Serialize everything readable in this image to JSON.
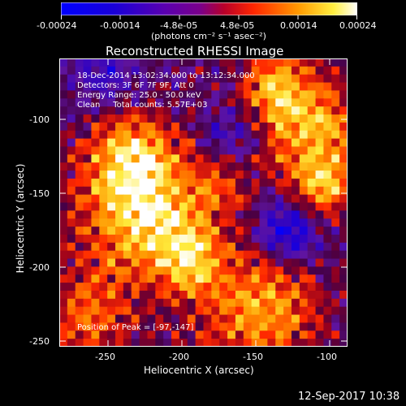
{
  "colorbar": {
    "tick_labels": [
      "-0.00024",
      "-0.00014",
      "-4.8e-05",
      "4.8e-05",
      "0.00014",
      "0.00024"
    ],
    "unit_label": "(photons cm⁻² s⁻¹ asec⁻²)",
    "range": [
      -0.00024,
      0.00024
    ]
  },
  "title": "Reconstructed RHESSI Image",
  "info": {
    "line1": "18-Dec-2014 13:02:34.000 to 13:12:34.000",
    "line2": "Detectors: 3F 6F 7F 9F, Att 0",
    "line3": "Energy Range: 25.0 - 50.0 keV",
    "line4": "Clean     Total counts: 5.57E+03"
  },
  "peak_text": "Position of Peak = [-97,-147]",
  "axes": {
    "xlabel": "Heliocentric X (arcsec)",
    "ylabel": "Heliocentric Y (arcsec)",
    "x_ticks": [
      "-250",
      "-200",
      "-150",
      "-100"
    ],
    "y_ticks": [
      "-100",
      "-150",
      "-200",
      "-250"
    ],
    "xlim": [
      -283,
      -88
    ],
    "ylim": [
      -252,
      -57
    ]
  },
  "timestamp": "12-Sep-2017 10:38",
  "colors": {
    "background": "#000000",
    "foreground": "#ffffff"
  }
}
